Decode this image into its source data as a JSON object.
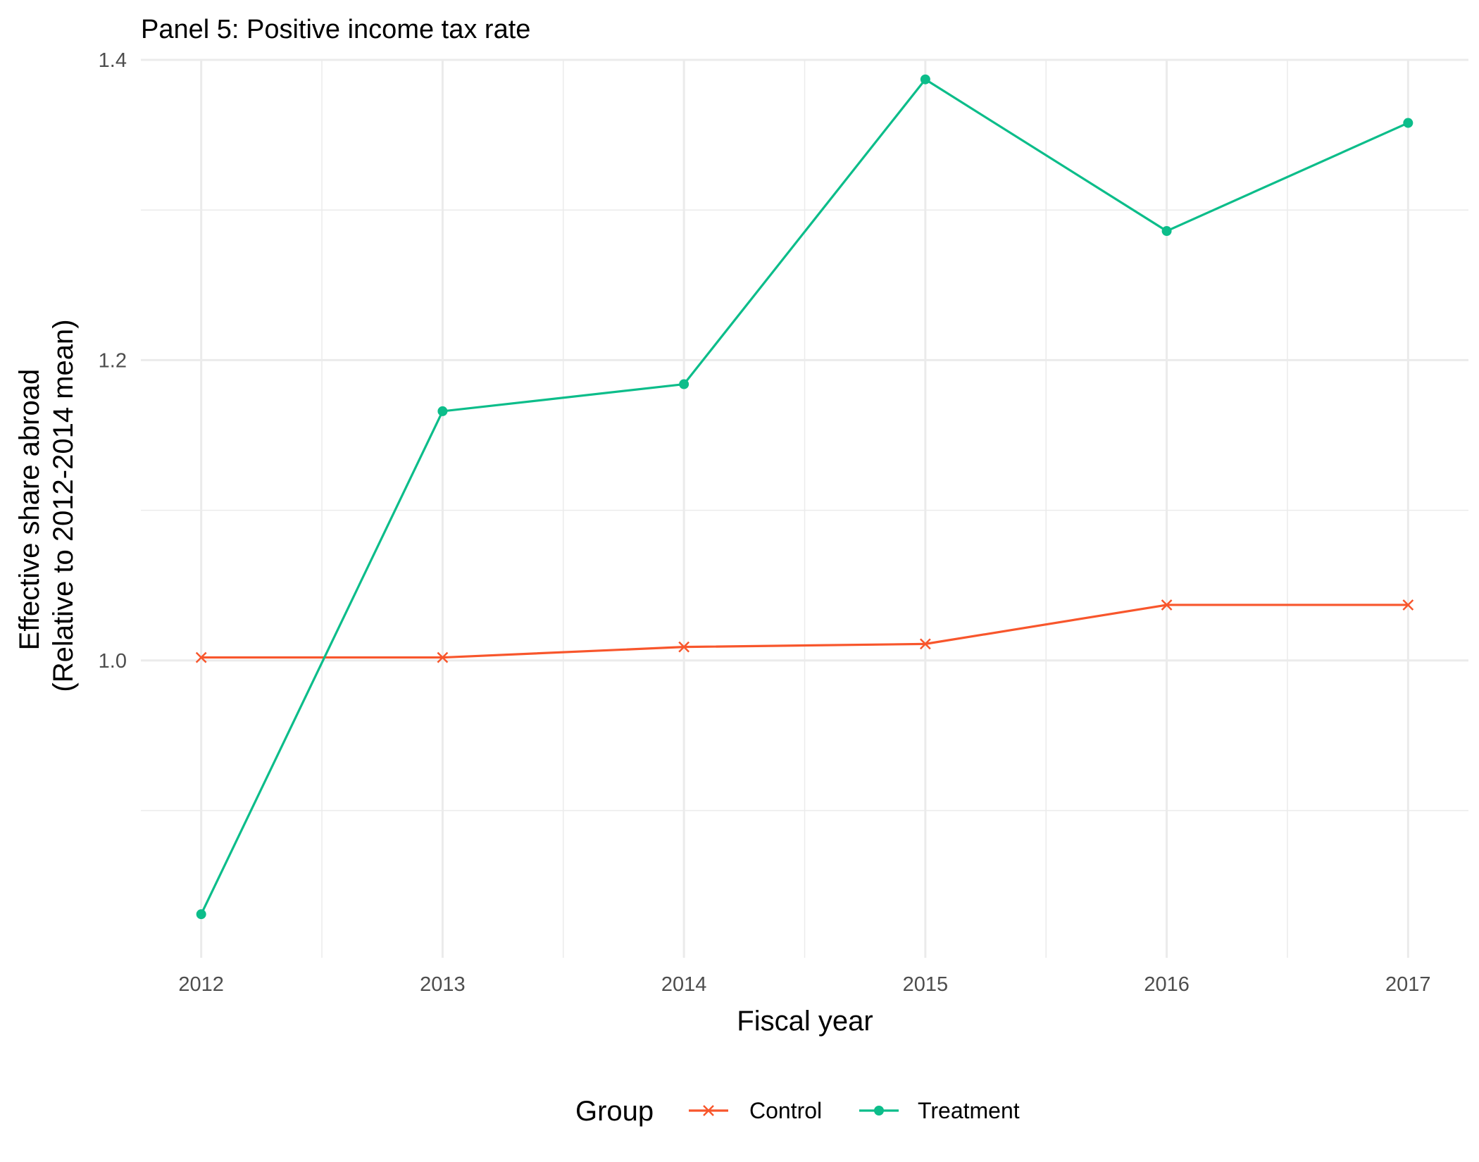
{
  "chart_data": {
    "type": "line",
    "title": "Panel 5: Positive income tax rate",
    "xlabel": "Fiscal year",
    "ylabel_lines": [
      "Effective share abroad",
      "(Relative to 2012-2014 mean)"
    ],
    "x": [
      2012,
      2013,
      2014,
      2015,
      2016,
      2017
    ],
    "xlim": [
      2011.75,
      2017.25
    ],
    "ylim": [
      0.802,
      1.4
    ],
    "y_ticks": [
      1.0,
      1.2,
      1.4
    ],
    "y_tick_labels": [
      "1.0",
      "1.2",
      "1.4"
    ],
    "x_tick_labels": [
      "2012",
      "2013",
      "2014",
      "2015",
      "2016",
      "2017"
    ],
    "grid": true,
    "legend": {
      "title": "Group",
      "position": "bottom"
    },
    "series": [
      {
        "name": "Control",
        "color": "#F8562C",
        "marker": "x",
        "values": [
          1.002,
          1.002,
          1.009,
          1.011,
          1.037,
          1.037
        ]
      },
      {
        "name": "Treatment",
        "color": "#0CBD8A",
        "marker": "circle",
        "values": [
          0.831,
          1.166,
          1.184,
          1.387,
          1.286,
          1.358
        ]
      }
    ]
  }
}
